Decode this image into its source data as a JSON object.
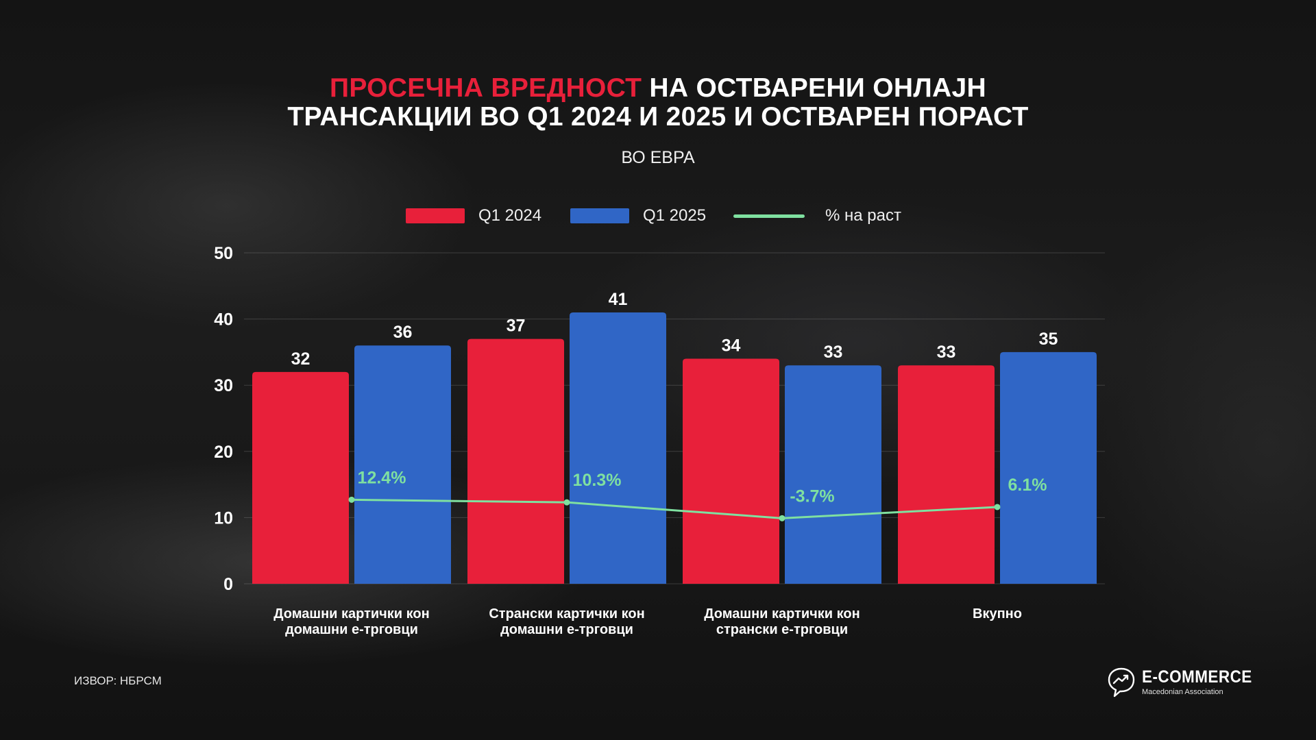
{
  "header": {
    "title_highlight": "ПРОСЕЧНА ВРЕДНОСТ",
    "title_rest_line1": "НА ОСТВАРЕНИ ОНЛАЈН",
    "title_line2": "ТРАНСАКЦИИ ВО Q1 2024 И 2025 И ОСТВАРЕН ПОРАСТ",
    "subtitle": "ВО ЕВРА"
  },
  "colors": {
    "highlight": "#e8203a",
    "q1_2024": "#e8203a",
    "q1_2025": "#3066c6",
    "growth": "#7fe0a0"
  },
  "chart_data": {
    "type": "bar",
    "categories": [
      [
        "Домашни картички кон",
        "домашни е-трговци"
      ],
      [
        "Странски картички кон",
        "домашни е-трговци"
      ],
      [
        "Домашни картички кон",
        "странски е-трговци"
      ],
      [
        "Вкупно"
      ]
    ],
    "series": [
      {
        "name": "Q1 2024",
        "values": [
          32,
          37,
          34,
          33
        ]
      },
      {
        "name": "Q1 2025",
        "values": [
          36,
          41,
          33,
          35
        ]
      }
    ],
    "line_series": {
      "name": "% на раст",
      "labels": [
        "12.4%",
        "10.3%",
        "-3.7%",
        "6.1%"
      ],
      "approx_axis_values": [
        12.7,
        12.3,
        9.9,
        11.6
      ]
    },
    "ylim": [
      0,
      50
    ],
    "yticks": [
      0,
      10,
      20,
      30,
      40,
      50
    ],
    "grid": true,
    "legend_position": "top-center",
    "data_labels": true
  },
  "footer": {
    "source": "ИЗВОР: НБРСМ",
    "logo_name": "E-COMMERCE",
    "logo_tagline": "Macedonian Association",
    "logo_icon": "chat-bubble-trend-icon"
  }
}
